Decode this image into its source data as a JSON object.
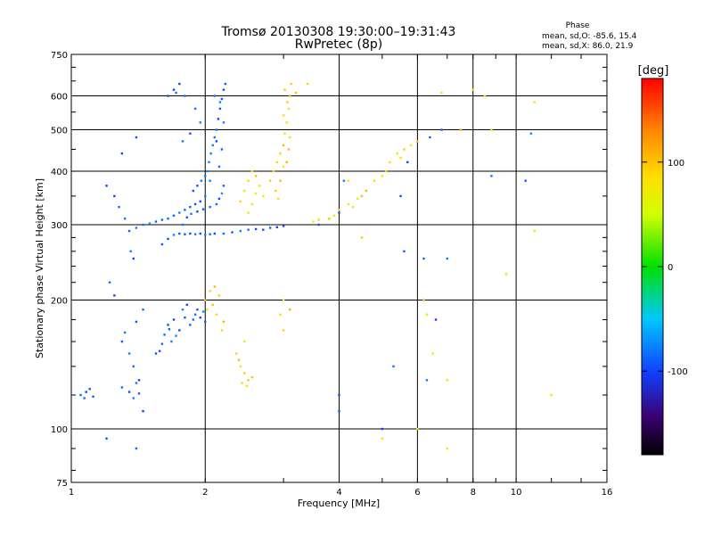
{
  "chart_data": {
    "type": "scatter",
    "title": "Tromsø 20130308 19:30:00–19:31:43",
    "subtitle": "RwPretec (8p)",
    "xlabel": "Frequency [MHz]",
    "ylabel": "Stationary phase Virtual Height [km]",
    "x_scale": "log",
    "y_scale": "log",
    "xlim": [
      1,
      16
    ],
    "ylim": [
      75,
      750
    ],
    "x_ticks": [
      1,
      2,
      4,
      6,
      8,
      10,
      16
    ],
    "x_tick_labels": [
      "1",
      "2",
      "4",
      "6",
      "8",
      "10",
      "16"
    ],
    "y_ticks": [
      75,
      100,
      200,
      300,
      400,
      500,
      600,
      750
    ],
    "y_tick_labels": [
      "75",
      "100",
      "200",
      "300",
      "400",
      "500",
      "600",
      "750"
    ],
    "grid": true,
    "phase_info": {
      "title": "Phase",
      "line1": "mean, sd,O: -85.6, 15.4",
      "line2": "mean, sd,X:  86.0, 21.9"
    },
    "colorbar": {
      "label": "[deg]",
      "min": -180,
      "max": 180,
      "ticks": [
        100,
        0,
        -100
      ],
      "tick_labels": [
        "100",
        "0",
        "-100"
      ]
    },
    "series": [
      {
        "mode": "O",
        "phase_mean": -85.6,
        "phase_sd": 15.4,
        "points": [
          [
            1.05,
            120
          ],
          [
            1.07,
            118
          ],
          [
            1.08,
            122
          ],
          [
            1.1,
            124
          ],
          [
            1.12,
            119
          ],
          [
            1.3,
            125
          ],
          [
            1.35,
            122
          ],
          [
            1.38,
            118
          ],
          [
            1.4,
            128
          ],
          [
            1.42,
            121
          ],
          [
            1.3,
            160
          ],
          [
            1.35,
            150
          ],
          [
            1.38,
            140
          ],
          [
            1.42,
            130
          ],
          [
            1.45,
            190
          ],
          [
            1.4,
            178
          ],
          [
            1.32,
            168
          ],
          [
            1.55,
            150
          ],
          [
            1.6,
            158
          ],
          [
            1.62,
            166
          ],
          [
            1.65,
            175
          ],
          [
            1.7,
            180
          ],
          [
            1.68,
            160
          ],
          [
            1.72,
            165
          ],
          [
            1.75,
            170
          ],
          [
            1.8,
            182
          ],
          [
            1.78,
            190
          ],
          [
            1.82,
            195
          ],
          [
            1.85,
            175
          ],
          [
            1.88,
            180
          ],
          [
            1.9,
            185
          ],
          [
            1.92,
            190
          ],
          [
            1.95,
            182
          ],
          [
            1.98,
            188
          ],
          [
            2.0,
            178
          ],
          [
            1.58,
            152
          ],
          [
            1.66,
            171
          ],
          [
            1.6,
            270
          ],
          [
            1.65,
            278
          ],
          [
            1.7,
            284
          ],
          [
            1.75,
            286
          ],
          [
            1.8,
            285
          ],
          [
            1.85,
            286
          ],
          [
            1.9,
            285
          ],
          [
            1.95,
            286
          ],
          [
            2.0,
            284
          ],
          [
            2.05,
            285
          ],
          [
            2.1,
            286
          ],
          [
            2.2,
            286
          ],
          [
            2.3,
            288
          ],
          [
            2.4,
            290
          ],
          [
            2.5,
            292
          ],
          [
            2.6,
            293
          ],
          [
            2.7,
            292
          ],
          [
            2.8,
            295
          ],
          [
            2.9,
            296
          ],
          [
            3.0,
            298
          ],
          [
            1.35,
            290
          ],
          [
            1.4,
            295
          ],
          [
            1.45,
            300
          ],
          [
            1.5,
            302
          ],
          [
            1.55,
            305
          ],
          [
            1.6,
            308
          ],
          [
            1.65,
            310
          ],
          [
            1.7,
            315
          ],
          [
            1.75,
            320
          ],
          [
            1.8,
            325
          ],
          [
            1.85,
            330
          ],
          [
            1.9,
            335
          ],
          [
            1.95,
            340
          ],
          [
            2.0,
            350
          ],
          [
            1.88,
            360
          ],
          [
            1.92,
            370
          ],
          [
            1.96,
            380
          ],
          [
            2.0,
            390
          ],
          [
            2.02,
            400
          ],
          [
            2.04,
            420
          ],
          [
            2.06,
            440
          ],
          [
            2.08,
            460
          ],
          [
            2.1,
            480
          ],
          [
            2.12,
            500
          ],
          [
            2.14,
            530
          ],
          [
            2.16,
            560
          ],
          [
            2.18,
            590
          ],
          [
            2.2,
            620
          ],
          [
            2.22,
            640
          ],
          [
            2.1,
            600
          ],
          [
            1.78,
            300
          ],
          [
            1.82,
            312
          ],
          [
            1.86,
            318
          ],
          [
            1.92,
            322
          ],
          [
            1.98,
            326
          ],
          [
            2.05,
            330
          ],
          [
            2.12,
            335
          ],
          [
            2.15,
            345
          ],
          [
            2.18,
            355
          ],
          [
            2.2,
            370
          ],
          [
            2.05,
            380
          ],
          [
            2.15,
            410
          ],
          [
            2.18,
            450
          ],
          [
            2.12,
            470
          ],
          [
            2.2,
            520
          ],
          [
            2.16,
            580
          ],
          [
            1.65,
            600
          ],
          [
            1.7,
            620
          ],
          [
            1.75,
            640
          ],
          [
            1.72,
            610
          ],
          [
            1.8,
            600
          ],
          [
            1.9,
            560
          ],
          [
            1.95,
            520
          ],
          [
            1.85,
            490
          ],
          [
            1.78,
            470
          ],
          [
            1.4,
            480
          ],
          [
            1.3,
            440
          ],
          [
            1.2,
            370
          ],
          [
            1.25,
            350
          ],
          [
            1.28,
            330
          ],
          [
            1.32,
            310
          ],
          [
            1.36,
            260
          ],
          [
            1.38,
            250
          ],
          [
            1.22,
            220
          ],
          [
            1.25,
            205
          ],
          [
            1.2,
            95
          ],
          [
            1.4,
            90
          ],
          [
            1.45,
            110
          ],
          [
            3.6,
            300
          ],
          [
            3.8,
            310
          ],
          [
            4.0,
            320
          ],
          [
            4.1,
            380
          ],
          [
            4.0,
            120
          ],
          [
            4.0,
            110
          ],
          [
            5.0,
            100
          ],
          [
            5.3,
            140
          ],
          [
            5.5,
            350
          ],
          [
            5.6,
            260
          ],
          [
            5.7,
            420
          ],
          [
            6.2,
            250
          ],
          [
            6.4,
            480
          ],
          [
            6.6,
            180
          ],
          [
            7.0,
            250
          ],
          [
            6.8,
            500
          ],
          [
            8.8,
            390
          ],
          [
            10.5,
            380
          ],
          [
            10.8,
            490
          ],
          [
            6.3,
            130
          ]
        ]
      },
      {
        "mode": "X",
        "phase_mean": 86.0,
        "phase_sd": 21.9,
        "points": [
          [
            2.4,
            340
          ],
          [
            2.45,
            360
          ],
          [
            2.5,
            380
          ],
          [
            2.55,
            400
          ],
          [
            2.6,
            390
          ],
          [
            2.65,
            370
          ],
          [
            2.7,
            350
          ],
          [
            2.5,
            320
          ],
          [
            2.55,
            335
          ],
          [
            2.6,
            355
          ],
          [
            2.8,
            380
          ],
          [
            2.85,
            400
          ],
          [
            2.9,
            420
          ],
          [
            2.95,
            440
          ],
          [
            3.0,
            460
          ],
          [
            3.02,
            490
          ],
          [
            3.05,
            520
          ],
          [
            3.08,
            560
          ],
          [
            3.1,
            600
          ],
          [
            3.12,
            640
          ],
          [
            3.0,
            410
          ],
          [
            2.95,
            380
          ],
          [
            2.88,
            360
          ],
          [
            2.92,
            345
          ],
          [
            3.05,
            420
          ],
          [
            3.08,
            450
          ],
          [
            3.1,
            480
          ],
          [
            3.0,
            540
          ],
          [
            3.06,
            580
          ],
          [
            3.02,
            620
          ],
          [
            2.0,
            200
          ],
          [
            2.05,
            210
          ],
          [
            2.1,
            215
          ],
          [
            2.15,
            205
          ],
          [
            2.08,
            195
          ],
          [
            2.12,
            185
          ],
          [
            2.02,
            190
          ],
          [
            2.2,
            178
          ],
          [
            2.18,
            170
          ],
          [
            2.35,
            150
          ],
          [
            2.4,
            140
          ],
          [
            2.45,
            135
          ],
          [
            2.5,
            130
          ],
          [
            2.42,
            128
          ],
          [
            2.48,
            126
          ],
          [
            2.38,
            145
          ],
          [
            2.55,
            132
          ],
          [
            2.45,
            160
          ],
          [
            3.0,
            200
          ],
          [
            2.95,
            185
          ],
          [
            3.1,
            190
          ],
          [
            3.0,
            170
          ],
          [
            3.5,
            305
          ],
          [
            3.6,
            308
          ],
          [
            3.8,
            310
          ],
          [
            3.9,
            315
          ],
          [
            4.0,
            325
          ],
          [
            4.2,
            335
          ],
          [
            4.4,
            345
          ],
          [
            4.6,
            360
          ],
          [
            4.8,
            380
          ],
          [
            5.0,
            390
          ],
          [
            5.2,
            420
          ],
          [
            5.4,
            440
          ],
          [
            5.6,
            450
          ],
          [
            5.8,
            460
          ],
          [
            6.0,
            470
          ],
          [
            4.3,
            330
          ],
          [
            4.5,
            350
          ],
          [
            5.1,
            400
          ],
          [
            5.5,
            430
          ],
          [
            6.2,
            200
          ],
          [
            6.3,
            185
          ],
          [
            6.5,
            150
          ],
          [
            7.0,
            130
          ],
          [
            7.5,
            500
          ],
          [
            8.0,
            620
          ],
          [
            8.5,
            600
          ],
          [
            8.8,
            500
          ],
          [
            9.5,
            230
          ],
          [
            11.0,
            290
          ],
          [
            12.0,
            120
          ],
          [
            11.0,
            580
          ],
          [
            7.0,
            90
          ],
          [
            6.0,
            100
          ],
          [
            5.0,
            95
          ],
          [
            4.5,
            280
          ],
          [
            4.2,
            380
          ],
          [
            3.4,
            640
          ],
          [
            3.2,
            610
          ],
          [
            6.8,
            610
          ]
        ]
      }
    ]
  }
}
